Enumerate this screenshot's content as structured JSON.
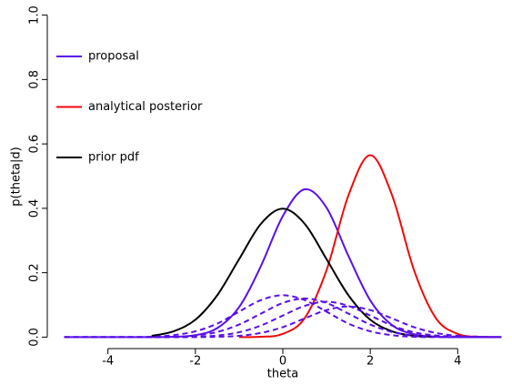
{
  "chart_data": {
    "type": "line",
    "xlabel": "theta",
    "ylabel": "p(theta|d)",
    "x": [
      -5,
      -4.5,
      -4,
      -3.5,
      -3,
      -2.5,
      -2,
      -1.5,
      -1,
      -0.5,
      0,
      0.5,
      1,
      1.5,
      2,
      2.5,
      3,
      3.5,
      4,
      4.5,
      5
    ],
    "xlim": [
      -5.2,
      5.2
    ],
    "xticks": [
      -4,
      -2,
      0,
      2,
      4
    ],
    "ylim": [
      -0.03,
      1.03
    ],
    "yticks": [
      {
        "value": 0,
        "label": "0.0"
      },
      {
        "value": 0.2,
        "label": "0.2"
      },
      {
        "value": 0.4,
        "label": "0.4"
      },
      {
        "value": 0.6,
        "label": "0.6"
      },
      {
        "value": 0.8,
        "label": "0.8"
      },
      {
        "value": 1,
        "label": "1.0"
      }
    ],
    "legend": "upper left",
    "series": [
      {
        "name": "proposal",
        "color": "#5a10e8",
        "linestyle": "solid",
        "values": [
          0,
          0,
          0,
          0,
          0,
          0.001,
          0.006,
          0.028,
          0.093,
          0.221,
          0.376,
          0.459,
          0.402,
          0.252,
          0.114,
          0.037,
          0.009,
          0.001,
          0,
          0,
          0
        ]
      },
      {
        "name": "analytical posterior",
        "color": "#ee0a0a",
        "linestyle": "solid",
        "values": [
          null,
          null,
          null,
          null,
          null,
          null,
          null,
          null,
          0,
          0.001,
          0.01,
          0.059,
          0.208,
          0.44,
          0.565,
          0.44,
          0.208,
          0.059,
          0.01,
          0.001,
          0
        ]
      },
      {
        "name": "prior pdf",
        "color": "#000000",
        "linestyle": "solid",
        "values": [
          null,
          null,
          null,
          null,
          0.004,
          0.018,
          0.054,
          0.13,
          0.242,
          0.352,
          0.399,
          0.352,
          0.242,
          0.13,
          0.054,
          0.018,
          0.004,
          0.001,
          null,
          null,
          null
        ]
      },
      {
        "color": "#5a10e8",
        "linestyle": "dashed",
        "values": [
          0,
          0,
          0,
          0,
          0.001,
          0.006,
          0.018,
          0.042,
          0.079,
          0.115,
          0.13,
          0.115,
          0.079,
          0.042,
          0.018,
          0.006,
          0.001,
          0,
          0,
          0,
          0
        ]
      },
      {
        "color": "#5a10e8",
        "linestyle": "dashed",
        "values": [
          0,
          0,
          0,
          0,
          0,
          0.001,
          0.005,
          0.016,
          0.039,
          0.073,
          0.106,
          0.12,
          0.106,
          0.073,
          0.039,
          0.016,
          0.005,
          0.001,
          0,
          0,
          0
        ]
      },
      {
        "color": "#5a10e8",
        "linestyle": "dashed",
        "values": [
          0,
          0,
          0,
          0,
          0,
          0,
          0.001,
          0.005,
          0.015,
          0.036,
          0.067,
          0.097,
          0.11,
          0.097,
          0.067,
          0.036,
          0.015,
          0.005,
          0.001,
          0,
          0
        ]
      },
      {
        "color": "#5a10e8",
        "linestyle": "dashed",
        "values": [
          0,
          0,
          0,
          0,
          0,
          0,
          0,
          0.001,
          0.004,
          0.013,
          0.031,
          0.058,
          0.084,
          0.095,
          0.084,
          0.058,
          0.031,
          0.013,
          0.004,
          0.001,
          0
        ]
      }
    ]
  }
}
